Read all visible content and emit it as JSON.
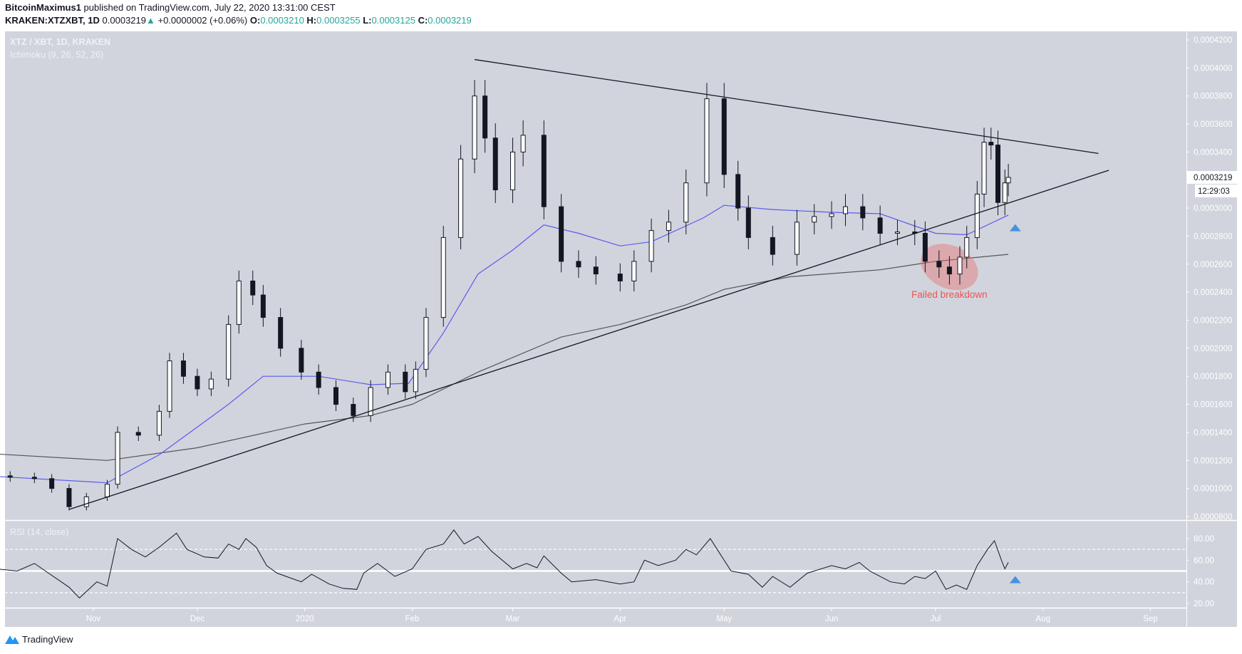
{
  "header": {
    "author": "BitcoinMaximus1",
    "published": "published on TradingView.com, July 22, 2020 13:31:00 CEST",
    "symbol": "KRAKEN:XTZXBT, 1D",
    "last": "0.0003219",
    "change": "+0.0000002 (+0.06%)",
    "o_label": "O:",
    "o": "0.0003210",
    "h_label": "H:",
    "h": "0.0003255",
    "l_label": "L:",
    "l": "0.0003125",
    "c_label": "C:",
    "c": "0.0003219",
    "up_icon": "triangle-up-icon"
  },
  "pane_labels": {
    "title": "XTZ / XBT, 1D, KRAKEN",
    "indicator": "Ichimoku (9, 26, 52, 26)",
    "rsi": "RSI (14, close)"
  },
  "price_box": {
    "value": "0.0003219",
    "countdown": "12:29:03"
  },
  "annotation": {
    "text": "Failed breakdown",
    "color": "#f05350"
  },
  "footer": {
    "brand": "TradingView",
    "logo_icon": "tradingview-logo-icon"
  },
  "colors": {
    "background": "#d1d4dc",
    "candle_up": "#ffffff",
    "candle_down": "#131722",
    "ma_fast": "#5b5bf0",
    "ma_slow": "#555555",
    "accent": "#26a69a",
    "marker": "#4a90e2"
  },
  "chart_data": [
    {
      "type": "candlestick",
      "ylim": [
        8e-05,
        0.00042
      ],
      "y_ticks": [
        "0.0004200",
        "0.0004000",
        "0.0003800",
        "0.0003600",
        "0.0003400",
        "0.0003000",
        "0.0002800",
        "0.0002600",
        "0.0002400",
        "0.0002200",
        "0.0002000",
        "0.0001800",
        "0.0001600",
        "0.0001400",
        "0.0001200",
        "0.0001000",
        "0.0000800"
      ],
      "x_ticks": [
        {
          "date": "2019-11-01",
          "label": "Nov"
        },
        {
          "date": "2019-12-01",
          "label": "Dec"
        },
        {
          "date": "2020-01-01",
          "label": "2020"
        },
        {
          "date": "2020-02-01",
          "label": "Feb"
        },
        {
          "date": "2020-03-01",
          "label": "Mar"
        },
        {
          "date": "2020-04-01",
          "label": "Apr"
        },
        {
          "date": "2020-05-01",
          "label": "May"
        },
        {
          "date": "2020-06-01",
          "label": "Jun"
        },
        {
          "date": "2020-07-01",
          "label": "Jul"
        },
        {
          "date": "2020-08-01",
          "label": "Aug"
        },
        {
          "date": "2020-09-01",
          "label": "Sep"
        }
      ],
      "close": [
        [
          "2019-10-01",
          0.000109
        ],
        [
          "2019-10-08",
          0.000108
        ],
        [
          "2019-10-15",
          0.000107
        ],
        [
          "2019-10-20",
          0.0001
        ],
        [
          "2019-10-25",
          8.7e-05
        ],
        [
          "2019-10-30",
          9.4e-05
        ],
        [
          "2019-11-05",
          0.000103
        ],
        [
          "2019-11-08",
          0.00014
        ],
        [
          "2019-11-14",
          0.000138
        ],
        [
          "2019-11-20",
          0.000155
        ],
        [
          "2019-11-23",
          0.000191
        ],
        [
          "2019-11-27",
          0.00018
        ],
        [
          "2019-12-01",
          0.000171
        ],
        [
          "2019-12-05",
          0.000178
        ],
        [
          "2019-12-10",
          0.000217
        ],
        [
          "2019-12-13",
          0.000248
        ],
        [
          "2019-12-17",
          0.000238
        ],
        [
          "2019-12-20",
          0.000222
        ],
        [
          "2019-12-25",
          0.0002
        ],
        [
          "2019-12-31",
          0.000183
        ],
        [
          "2020-01-05",
          0.000172
        ],
        [
          "2020-01-10",
          0.00016
        ],
        [
          "2020-01-15",
          0.000152
        ],
        [
          "2020-01-20",
          0.000172
        ],
        [
          "2020-01-25",
          0.000183
        ],
        [
          "2020-01-30",
          0.000169
        ],
        [
          "2020-02-02",
          0.000185
        ],
        [
          "2020-02-05",
          0.000222
        ],
        [
          "2020-02-10",
          0.000279
        ],
        [
          "2020-02-15",
          0.000335
        ],
        [
          "2020-02-19",
          0.00038
        ],
        [
          "2020-02-22",
          0.00035
        ],
        [
          "2020-02-25",
          0.000313
        ],
        [
          "2020-03-01",
          0.00034
        ],
        [
          "2020-03-04",
          0.000352
        ],
        [
          "2020-03-10",
          0.000301
        ],
        [
          "2020-03-15",
          0.000262
        ],
        [
          "2020-03-20",
          0.000258
        ],
        [
          "2020-03-25",
          0.000253
        ],
        [
          "2020-04-01",
          0.000248
        ],
        [
          "2020-04-05",
          0.000262
        ],
        [
          "2020-04-10",
          0.000284
        ],
        [
          "2020-04-15",
          0.00029
        ],
        [
          "2020-04-20",
          0.000318
        ],
        [
          "2020-04-26",
          0.000378
        ],
        [
          "2020-05-01",
          0.000324
        ],
        [
          "2020-05-05",
          0.0003
        ],
        [
          "2020-05-08",
          0.000279
        ],
        [
          "2020-05-15",
          0.000267
        ],
        [
          "2020-05-22",
          0.00029
        ],
        [
          "2020-05-27",
          0.000294
        ],
        [
          "2020-06-01",
          0.000296
        ],
        [
          "2020-06-05",
          0.000301
        ],
        [
          "2020-06-10",
          0.000293
        ],
        [
          "2020-06-15",
          0.000282
        ],
        [
          "2020-06-20",
          0.000283
        ],
        [
          "2020-06-25",
          0.000282
        ],
        [
          "2020-06-28",
          0.000262
        ],
        [
          "2020-07-02",
          0.000258
        ],
        [
          "2020-07-05",
          0.000253
        ],
        [
          "2020-07-08",
          0.000265
        ],
        [
          "2020-07-10",
          0.000279
        ],
        [
          "2020-07-13",
          0.00031
        ],
        [
          "2020-07-15",
          0.000347
        ],
        [
          "2020-07-17",
          0.000345
        ],
        [
          "2020-07-19",
          0.000304
        ],
        [
          "2020-07-21",
          0.000318
        ],
        [
          "2020-07-22",
          0.0003219
        ]
      ],
      "series": [
        {
          "role": "fast-ma",
          "values": [
            [
              "2019-10-01",
              0.000109
            ],
            [
              "2019-11-05",
              0.000104
            ],
            [
              "2019-11-20",
              0.000124
            ],
            [
              "2019-12-10",
              0.00016
            ],
            [
              "2019-12-20",
              0.00018
            ],
            [
              "2020-01-05",
              0.00018
            ],
            [
              "2020-01-20",
              0.000174
            ],
            [
              "2020-01-31",
              0.000175
            ],
            [
              "2020-02-10",
              0.000211
            ],
            [
              "2020-02-20",
              0.000253
            ],
            [
              "2020-03-01",
              0.00027
            ],
            [
              "2020-03-10",
              0.000288
            ],
            [
              "2020-03-20",
              0.000282
            ],
            [
              "2020-04-01",
              0.000273
            ],
            [
              "2020-04-10",
              0.000276
            ],
            [
              "2020-04-25",
              0.000293
            ],
            [
              "2020-05-01",
              0.000302
            ],
            [
              "2020-05-15",
              0.000299
            ],
            [
              "2020-06-01",
              0.000297
            ],
            [
              "2020-06-15",
              0.000296
            ],
            [
              "2020-07-01",
              0.000282
            ],
            [
              "2020-07-10",
              0.000281
            ],
            [
              "2020-07-22",
              0.000295
            ]
          ]
        },
        {
          "role": "slow-ma",
          "values": [
            [
              "2019-10-01",
              0.000125
            ],
            [
              "2019-11-05",
              0.00012
            ],
            [
              "2019-12-01",
              0.000129
            ],
            [
              "2020-01-01",
              0.000146
            ],
            [
              "2020-01-20",
              0.000152
            ],
            [
              "2020-02-01",
              0.00016
            ],
            [
              "2020-02-20",
              0.000183
            ],
            [
              "2020-03-15",
              0.000208
            ],
            [
              "2020-04-01",
              0.000217
            ],
            [
              "2020-04-20",
              0.000231
            ],
            [
              "2020-05-01",
              0.000242
            ],
            [
              "2020-05-20",
              0.000251
            ],
            [
              "2020-06-15",
              0.000256
            ],
            [
              "2020-07-01",
              0.000262
            ],
            [
              "2020-07-22",
              0.000267
            ]
          ]
        }
      ],
      "trendlines": [
        {
          "role": "resistance",
          "from": [
            "2020-02-19",
            0.000406
          ],
          "to": [
            "2020-08-17",
            0.000339
          ]
        },
        {
          "role": "support",
          "from": [
            "2019-10-25",
            8.5e-05
          ],
          "to": [
            "2020-08-20",
            0.000327
          ]
        }
      ],
      "annotations": [
        {
          "type": "ellipse",
          "center": [
            "2020-07-05",
            0.000258
          ]
        },
        {
          "type": "arrow-up",
          "at": [
            "2020-07-24",
            0.000286
          ]
        }
      ]
    },
    {
      "type": "line",
      "title": "RSI (14, close)",
      "ylim": [
        15,
        92
      ],
      "y_ticks": [
        "80.00",
        "60.00",
        "40.00",
        "20.00"
      ],
      "levels": [
        70,
        50,
        30
      ],
      "values": [
        [
          "2019-10-01",
          53
        ],
        [
          "2019-10-10",
          50
        ],
        [
          "2019-10-15",
          57
        ],
        [
          "2019-10-25",
          35
        ],
        [
          "2019-10-28",
          25
        ],
        [
          "2019-11-02",
          40
        ],
        [
          "2019-11-05",
          36
        ],
        [
          "2019-11-08",
          80
        ],
        [
          "2019-11-12",
          70
        ],
        [
          "2019-11-16",
          63
        ],
        [
          "2019-11-20",
          72
        ],
        [
          "2019-11-25",
          85
        ],
        [
          "2019-11-28",
          70
        ],
        [
          "2019-12-03",
          63
        ],
        [
          "2019-12-07",
          62
        ],
        [
          "2019-12-10",
          75
        ],
        [
          "2019-12-13",
          70
        ],
        [
          "2019-12-15",
          80
        ],
        [
          "2019-12-18",
          72
        ],
        [
          "2019-12-21",
          55
        ],
        [
          "2019-12-24",
          48
        ],
        [
          "2019-12-31",
          40
        ],
        [
          "2020-01-03",
          47
        ],
        [
          "2020-01-08",
          38
        ],
        [
          "2020-01-12",
          34
        ],
        [
          "2020-01-16",
          33
        ],
        [
          "2020-01-18",
          48
        ],
        [
          "2020-01-22",
          57
        ],
        [
          "2020-01-27",
          45
        ],
        [
          "2020-02-01",
          52
        ],
        [
          "2020-02-05",
          70
        ],
        [
          "2020-02-10",
          75
        ],
        [
          "2020-02-13",
          88
        ],
        [
          "2020-02-16",
          75
        ],
        [
          "2020-02-20",
          82
        ],
        [
          "2020-02-24",
          68
        ],
        [
          "2020-03-01",
          52
        ],
        [
          "2020-03-05",
          57
        ],
        [
          "2020-03-08",
          53
        ],
        [
          "2020-03-10",
          64
        ],
        [
          "2020-03-15",
          48
        ],
        [
          "2020-03-18",
          40
        ],
        [
          "2020-03-25",
          42
        ],
        [
          "2020-04-01",
          38
        ],
        [
          "2020-04-05",
          40
        ],
        [
          "2020-04-08",
          60
        ],
        [
          "2020-04-12",
          55
        ],
        [
          "2020-04-17",
          60
        ],
        [
          "2020-04-20",
          70
        ],
        [
          "2020-04-23",
          65
        ],
        [
          "2020-04-27",
          80
        ],
        [
          "2020-04-30",
          65
        ],
        [
          "2020-05-03",
          50
        ],
        [
          "2020-05-08",
          47
        ],
        [
          "2020-05-12",
          35
        ],
        [
          "2020-05-15",
          45
        ],
        [
          "2020-05-20",
          35
        ],
        [
          "2020-05-25",
          48
        ],
        [
          "2020-06-01",
          55
        ],
        [
          "2020-06-05",
          52
        ],
        [
          "2020-06-09",
          58
        ],
        [
          "2020-06-12",
          50
        ],
        [
          "2020-06-18",
          40
        ],
        [
          "2020-06-22",
          38
        ],
        [
          "2020-06-25",
          45
        ],
        [
          "2020-06-28",
          43
        ],
        [
          "2020-07-01",
          50
        ],
        [
          "2020-07-04",
          33
        ],
        [
          "2020-07-07",
          37
        ],
        [
          "2020-07-10",
          33
        ],
        [
          "2020-07-13",
          55
        ],
        [
          "2020-07-16",
          70
        ],
        [
          "2020-07-18",
          78
        ],
        [
          "2020-07-20",
          60
        ],
        [
          "2020-07-21",
          52
        ],
        [
          "2020-07-22",
          58
        ]
      ],
      "annotations": [
        {
          "type": "arrow-up",
          "at": [
            "2020-07-24",
            42
          ]
        }
      ]
    }
  ]
}
